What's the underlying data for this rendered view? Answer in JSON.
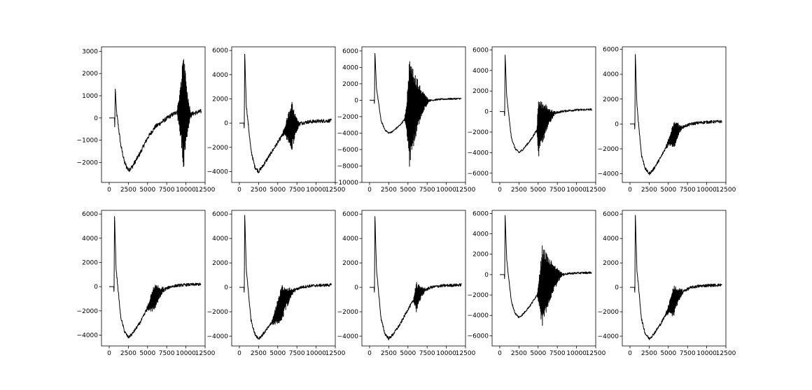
{
  "figure": {
    "background": "#ffffff",
    "line_color": "#000000",
    "rows": 2,
    "cols": 5
  },
  "chart_data": [
    {
      "type": "line",
      "row": 0,
      "col": 0,
      "xlim": [
        -1000,
        12500
      ],
      "ylim": [
        -2900,
        3200
      ],
      "xticks": [
        0,
        2500,
        5000,
        7500,
        10000,
        12500
      ],
      "yticks": [
        -2000,
        -1000,
        0,
        1000,
        2000,
        3000
      ],
      "x": [
        0,
        700,
        800,
        950,
        1500,
        2000,
        2500,
        3000,
        4000,
        5000,
        6000,
        7000,
        8000,
        8500,
        9000,
        9500,
        10000,
        10500,
        11000,
        12000
      ],
      "y": [
        0,
        0,
        1300,
        300,
        -1200,
        -2000,
        -2350,
        -2200,
        -1600,
        -900,
        -400,
        -150,
        100,
        200,
        300,
        350,
        250,
        150,
        200,
        300
      ],
      "burst": {
        "start": 8700,
        "end": 10800,
        "peak_x": 9700,
        "amplitude": 2700
      },
      "noise": 100
    },
    {
      "type": "line",
      "row": 0,
      "col": 1,
      "xlim": [
        -1000,
        12500
      ],
      "ylim": [
        -4900,
        6300
      ],
      "xticks": [
        0,
        2500,
        5000,
        7500,
        10000,
        12500
      ],
      "yticks": [
        -4000,
        -2000,
        0,
        2000,
        4000,
        6000
      ],
      "x": [
        0,
        600,
        700,
        900,
        1500,
        2000,
        2500,
        3000,
        4000,
        5000,
        6000,
        7000,
        8000,
        9000,
        10000,
        12000
      ],
      "y": [
        0,
        0,
        5700,
        1500,
        -2200,
        -3600,
        -4000,
        -3600,
        -2600,
        -1600,
        -600,
        -200,
        0,
        100,
        150,
        200
      ],
      "burst": {
        "start": 5500,
        "end": 8000,
        "peak_x": 6800,
        "amplitude": 2200
      },
      "noise": 150
    },
    {
      "type": "line",
      "row": 0,
      "col": 2,
      "xlim": [
        -1000,
        12500
      ],
      "ylim": [
        -10000,
        6500
      ],
      "xticks": [
        0,
        2500,
        5000,
        7500,
        10000,
        12500
      ],
      "yticks": [
        -10000,
        -8000,
        -6000,
        -4000,
        -2000,
        0,
        2000,
        4000,
        6000
      ],
      "x": [
        0,
        600,
        700,
        900,
        1500,
        2000,
        2500,
        3000,
        4000,
        5000,
        6000,
        7000,
        8000,
        9000,
        10000,
        12000
      ],
      "y": [
        0,
        0,
        5700,
        1500,
        -2500,
        -3600,
        -4000,
        -3800,
        -3000,
        -1800,
        -700,
        -200,
        0,
        100,
        150,
        200
      ],
      "burst": {
        "start": 4500,
        "end": 8000,
        "peak_x": 5200,
        "amplitude": 6500
      },
      "noise": 100
    },
    {
      "type": "line",
      "row": 0,
      "col": 3,
      "xlim": [
        -1000,
        12500
      ],
      "ylim": [
        -6900,
        6300
      ],
      "xticks": [
        0,
        2500,
        5000,
        7500,
        10000,
        12500
      ],
      "yticks": [
        -6000,
        -4000,
        -2000,
        0,
        2000,
        4000,
        6000
      ],
      "x": [
        0,
        600,
        700,
        900,
        1500,
        2000,
        2500,
        3000,
        4000,
        5000,
        6000,
        7000,
        8000,
        9000,
        10000,
        12000
      ],
      "y": [
        0,
        0,
        5500,
        1500,
        -2500,
        -3600,
        -4000,
        -3700,
        -2800,
        -1600,
        -700,
        -200,
        0,
        100,
        150,
        200
      ],
      "burst": {
        "start": 4800,
        "end": 7500,
        "peak_x": 5000,
        "amplitude": 3000
      },
      "noise": 100
    },
    {
      "type": "line",
      "row": 0,
      "col": 4,
      "xlim": [
        -1000,
        12500
      ],
      "ylim": [
        -4700,
        6200
      ],
      "xticks": [
        0,
        2500,
        5000,
        7500,
        10000,
        12500
      ],
      "yticks": [
        -4000,
        -2000,
        0,
        2000,
        4000,
        6000
      ],
      "x": [
        0,
        600,
        700,
        900,
        1500,
        2000,
        2500,
        3000,
        4000,
        5000,
        6000,
        7000,
        8000,
        9000,
        10000,
        12000
      ],
      "y": [
        0,
        0,
        5600,
        1500,
        -2500,
        -3600,
        -4000,
        -3700,
        -2700,
        -1500,
        -600,
        -200,
        0,
        100,
        150,
        200
      ],
      "burst": {
        "start": 4500,
        "end": 7000,
        "peak_x": 5800,
        "amplitude": 1100
      },
      "noise": 120
    },
    {
      "type": "line",
      "row": 1,
      "col": 0,
      "xlim": [
        -1000,
        12500
      ],
      "ylim": [
        -4900,
        6300
      ],
      "xticks": [
        0,
        2500,
        5000,
        7500,
        10000,
        12500
      ],
      "yticks": [
        -4000,
        -2000,
        0,
        2000,
        4000,
        6000
      ],
      "x": [
        0,
        600,
        700,
        900,
        1500,
        2000,
        2500,
        3000,
        4000,
        5000,
        6000,
        7000,
        8000,
        9000,
        10000,
        12000
      ],
      "y": [
        0,
        0,
        5800,
        1500,
        -2500,
        -3700,
        -4200,
        -3900,
        -3000,
        -1800,
        -800,
        -300,
        0,
        100,
        150,
        200
      ],
      "burst": {
        "start": 4500,
        "end": 7500,
        "peak_x": 5900,
        "amplitude": 1100
      },
      "noise": 120
    },
    {
      "type": "line",
      "row": 1,
      "col": 1,
      "xlim": [
        -1000,
        12500
      ],
      "ylim": [
        -4800,
        6300
      ],
      "xticks": [
        0,
        2500,
        5000,
        7500,
        10000,
        12500
      ],
      "yticks": [
        -4000,
        -2000,
        0,
        2000,
        4000,
        6000
      ],
      "x": [
        0,
        600,
        700,
        900,
        1500,
        2000,
        2500,
        3000,
        4000,
        5000,
        6000,
        7000,
        8000,
        9000,
        10000,
        12000
      ],
      "y": [
        0,
        0,
        5900,
        1500,
        -2600,
        -3800,
        -4200,
        -3900,
        -3100,
        -2000,
        -900,
        -300,
        0,
        100,
        150,
        200
      ],
      "burst": {
        "start": 3800,
        "end": 7500,
        "peak_x": 5500,
        "amplitude": 1600
      },
      "noise": 120
    },
    {
      "type": "line",
      "row": 1,
      "col": 2,
      "xlim": [
        -1000,
        12500
      ],
      "ylim": [
        -4800,
        6300
      ],
      "xticks": [
        0,
        2500,
        5000,
        7500,
        10000,
        12500
      ],
      "yticks": [
        -4000,
        -2000,
        0,
        2000,
        4000,
        6000
      ],
      "x": [
        0,
        600,
        700,
        900,
        1500,
        2000,
        2500,
        3000,
        4000,
        5000,
        6000,
        7000,
        8000,
        9000,
        10000,
        12000
      ],
      "y": [
        0,
        0,
        5800,
        1500,
        -2600,
        -3800,
        -4200,
        -3900,
        -3000,
        -1800,
        -800,
        -300,
        0,
        100,
        150,
        200
      ],
      "burst": {
        "start": 5600,
        "end": 7500,
        "peak_x": 6100,
        "amplitude": 1200
      },
      "noise": 120
    },
    {
      "type": "line",
      "row": 1,
      "col": 3,
      "xlim": [
        -1000,
        12500
      ],
      "ylim": [
        -7000,
        6300
      ],
      "xticks": [
        0,
        2500,
        5000,
        7500,
        10000,
        12500
      ],
      "yticks": [
        -6000,
        -4000,
        -2000,
        0,
        2000,
        4000,
        6000
      ],
      "x": [
        0,
        600,
        700,
        900,
        1500,
        2000,
        2500,
        3000,
        4000,
        5000,
        6000,
        7000,
        8000,
        9000,
        10000,
        12000
      ],
      "y": [
        0,
        0,
        5800,
        1500,
        -2600,
        -3800,
        -4200,
        -3900,
        -3000,
        -1800,
        -800,
        -300,
        0,
        100,
        150,
        200
      ],
      "burst": {
        "start": 4800,
        "end": 8500,
        "peak_x": 5500,
        "amplitude": 4200
      },
      "noise": 100
    },
    {
      "type": "line",
      "row": 1,
      "col": 4,
      "xlim": [
        -1000,
        12500
      ],
      "ylim": [
        -4800,
        6300
      ],
      "xticks": [
        0,
        2500,
        5000,
        7500,
        10000,
        12500
      ],
      "yticks": [
        -4000,
        -2000,
        0,
        2000,
        4000,
        6000
      ],
      "x": [
        0,
        600,
        700,
        900,
        1500,
        2000,
        2500,
        3000,
        4000,
        5000,
        6000,
        7000,
        8000,
        9000,
        10000,
        12000
      ],
      "y": [
        0,
        0,
        5900,
        1500,
        -2600,
        -3800,
        -4200,
        -3900,
        -3000,
        -1800,
        -800,
        -300,
        0,
        100,
        150,
        200
      ],
      "burst": {
        "start": 4500,
        "end": 7200,
        "peak_x": 5700,
        "amplitude": 1300
      },
      "noise": 120
    }
  ]
}
